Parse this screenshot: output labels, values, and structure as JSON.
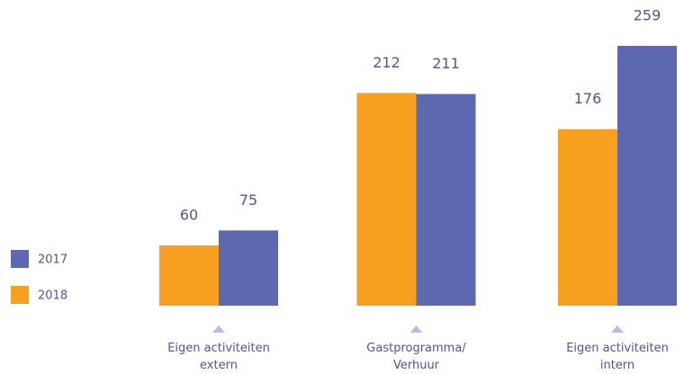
{
  "chart_data": {
    "type": "bar",
    "categories": [
      "Eigen activiteiten\nextern",
      "Gastprogramma/\nVerhuur",
      "Eigen activiteiten\nintern"
    ],
    "series": [
      {
        "name": "2018",
        "color": "#f79f1e",
        "values": [
          60,
          212,
          176
        ]
      },
      {
        "name": "2017",
        "color": "#5e68b0",
        "values": [
          75,
          211,
          259
        ]
      }
    ]
  }
}
